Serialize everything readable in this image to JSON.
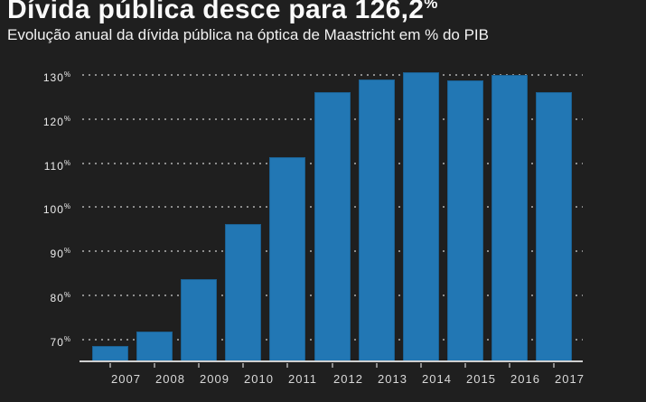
{
  "header": {
    "title_text": "Dívida pública desce para 126,2",
    "title_pct_symbol": "%",
    "subtitle": "Evolução anual da dívida pública na óptica de Maastricht em % do PIB"
  },
  "chart_data": {
    "type": "bar",
    "title": "Dívida pública desce para 126,2%",
    "subtitle": "Evolução anual da dívida pública na óptica de Maastricht em % do PIB",
    "categories": [
      "2007",
      "2008",
      "2009",
      "2010",
      "2011",
      "2012",
      "2013",
      "2014",
      "2015",
      "2016",
      "2017"
    ],
    "values": [
      68.4,
      71.7,
      83.6,
      96.2,
      111.4,
      126.2,
      129.0,
      130.6,
      128.8,
      130.1,
      126.2
    ],
    "unit": "% do PIB",
    "yticks": [
      70,
      80,
      90,
      100,
      110,
      120,
      130
    ],
    "ytick_suffix": "%",
    "ylim": [
      65,
      132.7
    ],
    "grid": "dotted-horizontal",
    "legend": "none",
    "bar_color": "#2277b4",
    "background_color": "#1f1f1f",
    "axis_line_color": "#cfcfcf",
    "gridline_color": "#8d8d8d",
    "text_color": "#f2f2f2"
  }
}
